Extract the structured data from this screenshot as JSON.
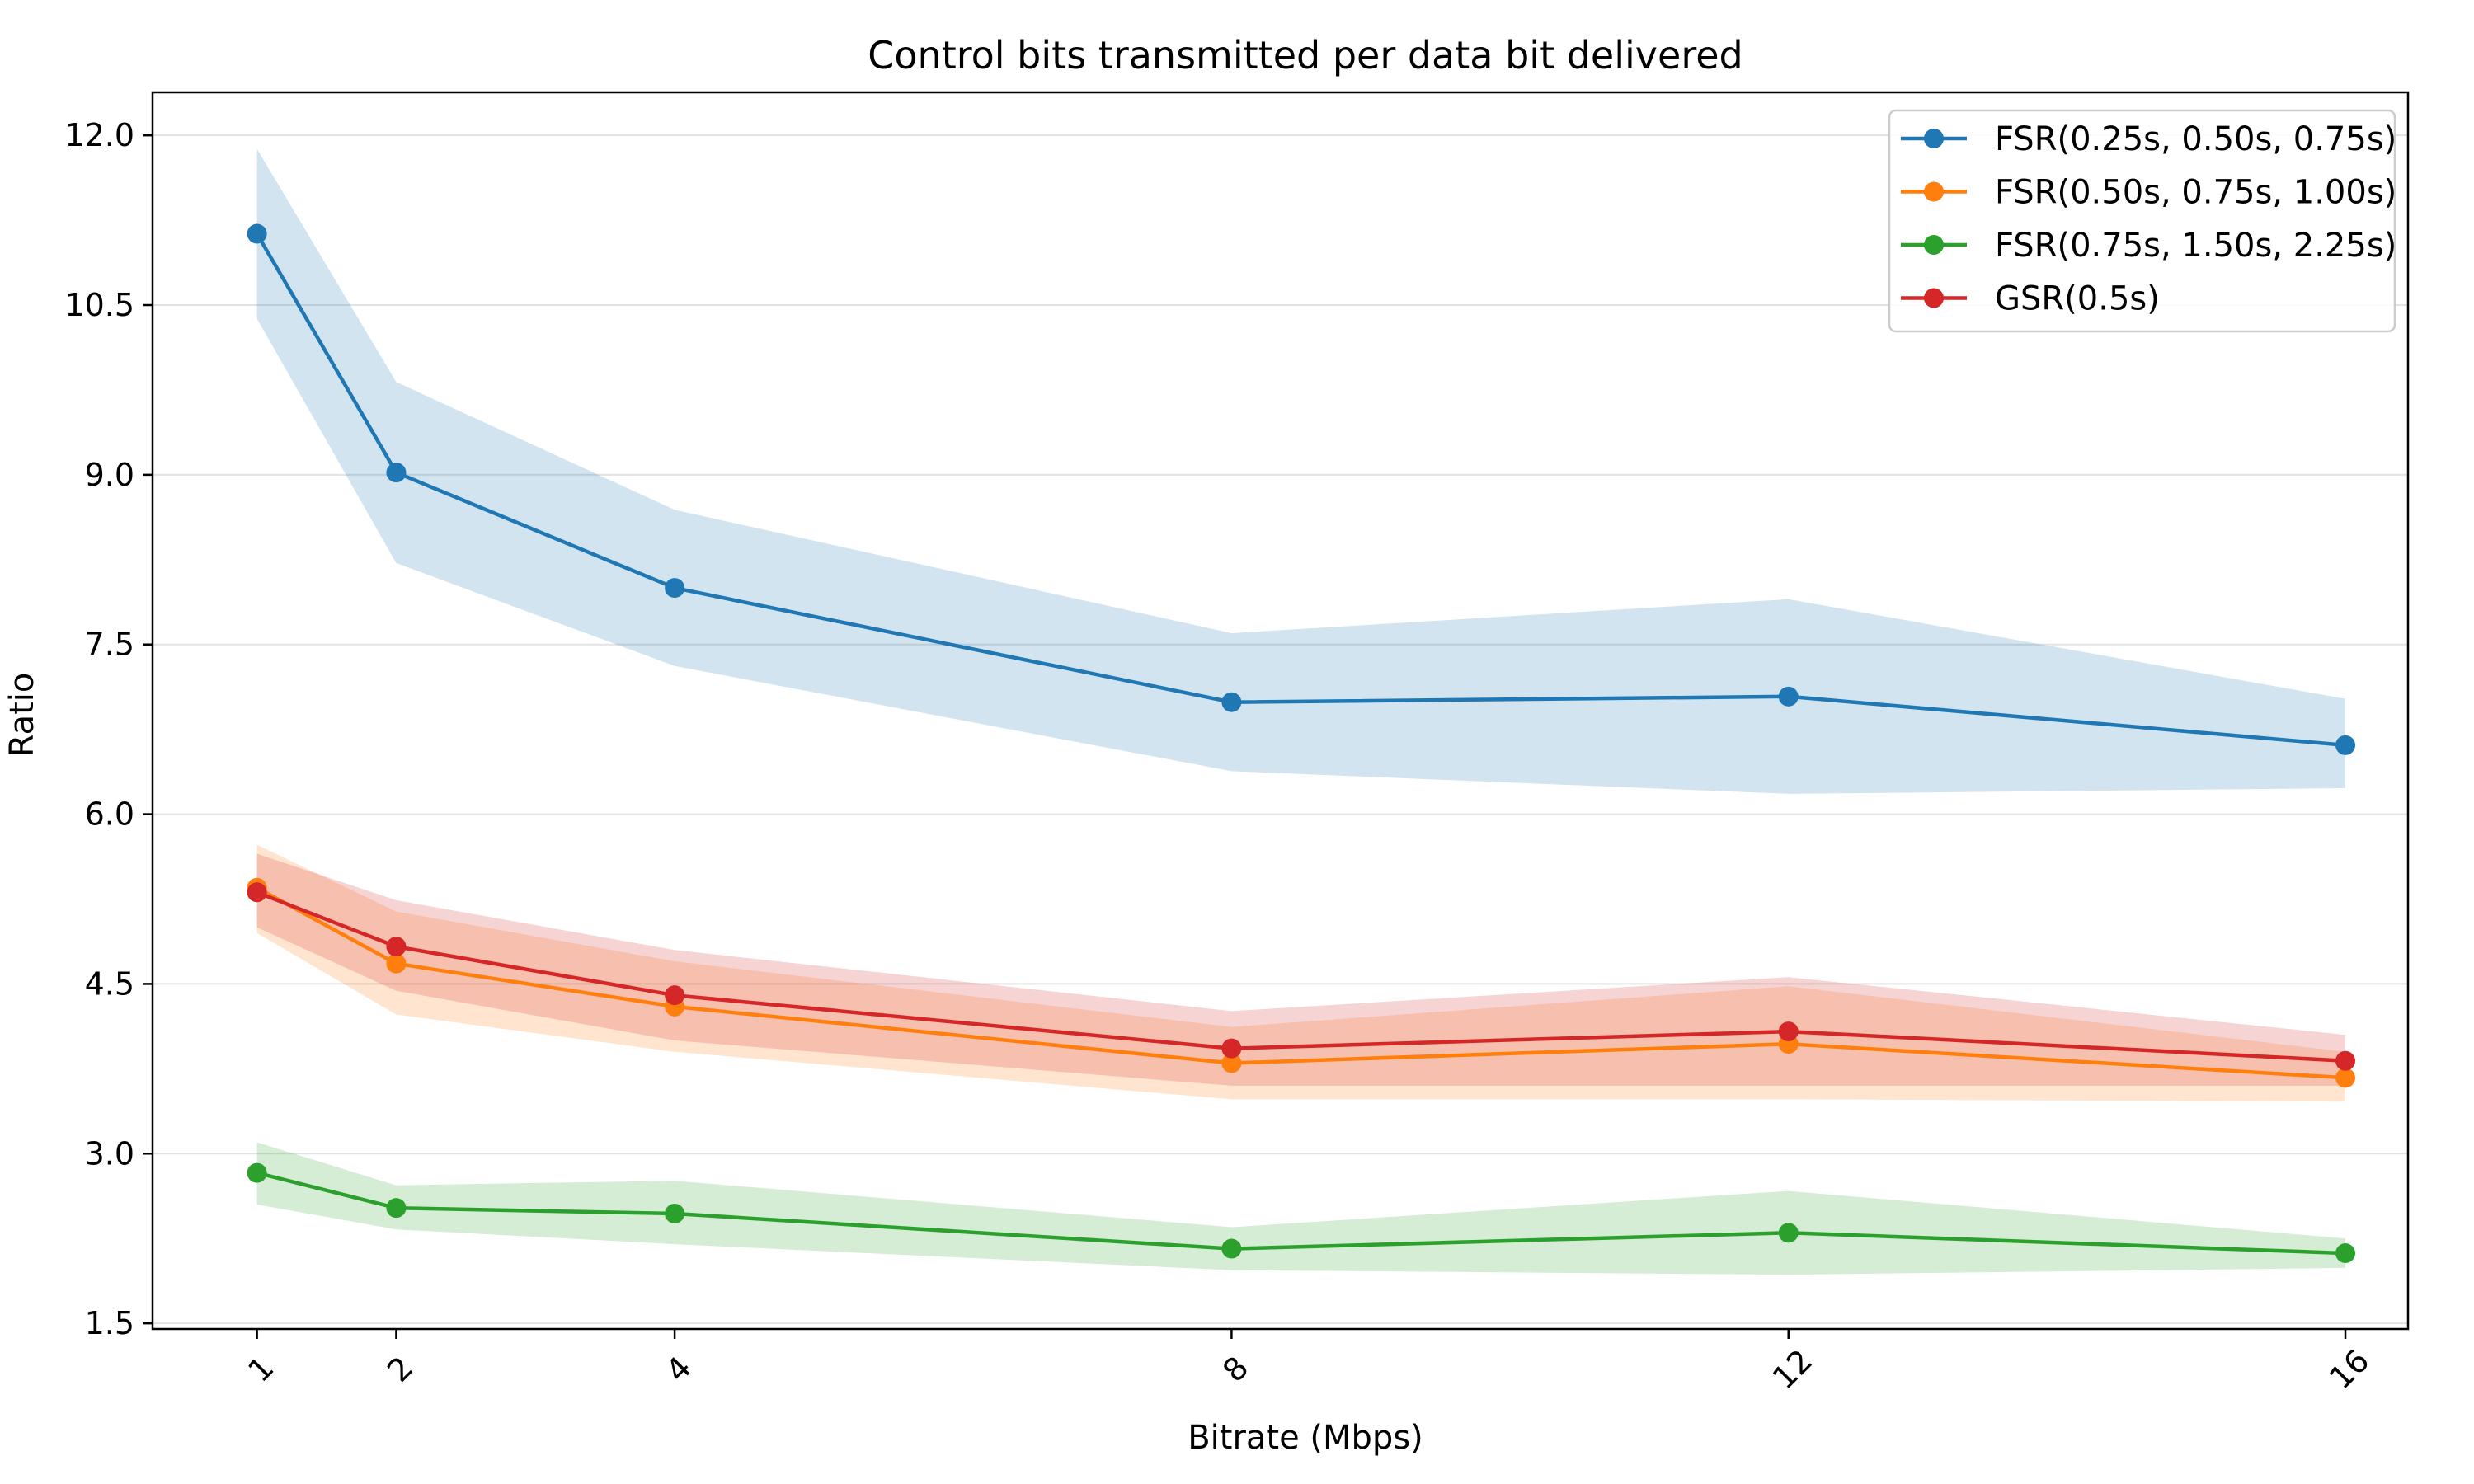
{
  "chart_data": {
    "type": "line",
    "title": "Control bits transmitted per data bit delivered",
    "xlabel": "Bitrate (Mbps)",
    "ylabel": "Ratio",
    "x": [
      1,
      2,
      4,
      8,
      12,
      16
    ],
    "x_ticks": [
      "1",
      "2",
      "4",
      "8",
      "12",
      "16"
    ],
    "xlim": [
      0.25,
      16.45
    ],
    "y_ticks": [
      "1.5",
      "3.0",
      "4.5",
      "6.0",
      "7.5",
      "9.0",
      "10.5",
      "12.0"
    ],
    "y_tick_values": [
      1.5,
      3.0,
      4.5,
      6.0,
      7.5,
      9.0,
      10.5,
      12.0
    ],
    "ylim": [
      1.45,
      12.38
    ],
    "grid": "horizontal",
    "legend_position": "top-right",
    "series": [
      {
        "name": "FSR(0.25s, 0.50s, 0.75s)",
        "color": "#1f77b4",
        "values": [
          11.13,
          9.02,
          8.0,
          6.99,
          7.04,
          6.61
        ],
        "lower": [
          10.38,
          8.22,
          7.31,
          6.38,
          6.18,
          6.23
        ],
        "upper": [
          11.88,
          9.82,
          8.69,
          7.6,
          7.9,
          7.02
        ]
      },
      {
        "name": "FSR(0.50s, 0.75s, 1.00s)",
        "color": "#ff7f0e",
        "values": [
          5.35,
          4.68,
          4.3,
          3.8,
          3.97,
          3.67
        ],
        "lower": [
          4.95,
          4.23,
          3.9,
          3.48,
          3.48,
          3.46
        ],
        "upper": [
          5.73,
          5.14,
          4.7,
          4.12,
          4.48,
          3.9
        ]
      },
      {
        "name": "FSR(0.75s, 1.50s, 2.25s)",
        "color": "#2ca02c",
        "values": [
          2.83,
          2.52,
          2.47,
          2.16,
          2.3,
          2.12
        ],
        "lower": [
          2.55,
          2.33,
          2.2,
          1.97,
          1.93,
          1.99
        ],
        "upper": [
          3.1,
          2.72,
          2.76,
          2.35,
          2.67,
          2.25
        ]
      },
      {
        "name": "GSR(0.5s)",
        "color": "#d62728",
        "values": [
          5.31,
          4.83,
          4.4,
          3.93,
          4.08,
          3.82
        ],
        "lower": [
          5.0,
          4.44,
          4.0,
          3.6,
          3.6,
          3.6
        ],
        "upper": [
          5.65,
          5.24,
          4.8,
          4.26,
          4.56,
          4.05
        ]
      }
    ]
  }
}
